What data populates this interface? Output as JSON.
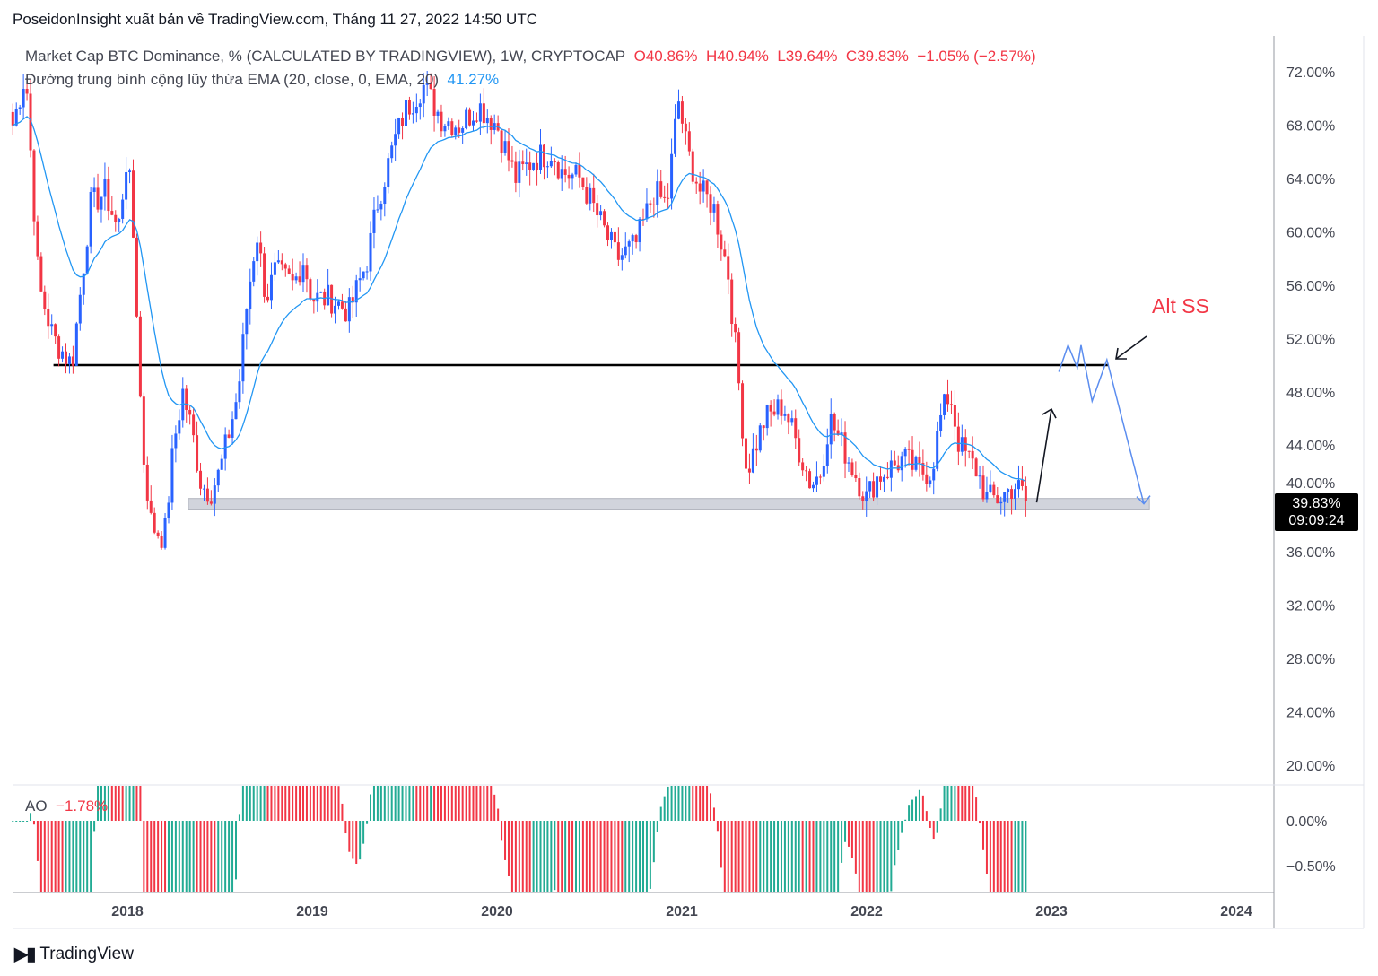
{
  "header": "PoseidonInsight xuất bản về TradingView.com, Tháng 11 27, 2022 14:50 UTC",
  "legend": {
    "symbol": "Market Cap BTC Dominance, % (CALCULATED BY TRADINGVIEW), 1W, CRYPTOCAP",
    "o": "O40.86%",
    "h": "H40.94%",
    "l": "L39.64%",
    "c": "C39.83%",
    "chg": "−1.05% (−2.57%)",
    "ema_label": "Đường trung bình cộng lũy thừa EMA (20, close, 0, EMA, 20)",
    "ema_value": "41.27%"
  },
  "price_tag": {
    "value": "39.83%",
    "countdown": "09:09:24"
  },
  "ao": {
    "label": "AO",
    "value": "−1.78%",
    "ticks": [
      "0.00%",
      "−0.50%"
    ]
  },
  "annotation": {
    "text": "Alt SS"
  },
  "footer": {
    "brand": "TradingView",
    "logo": "17"
  },
  "colors": {
    "up": "#2962ff",
    "down": "#f23645",
    "ema": "#2196f3",
    "ao_up": "#22ab94",
    "ao_down": "#f23645"
  },
  "chart_data": {
    "type": "candlestick",
    "title": "Market Cap BTC Dominance, % 1W",
    "ylim": [
      20,
      72
    ],
    "y_ticks": [
      "72.00%",
      "68.00%",
      "64.00%",
      "60.00%",
      "56.00%",
      "52.00%",
      "48.00%",
      "44.00%",
      "40.00%",
      "36.00%",
      "32.00%",
      "28.00%",
      "24.00%",
      "20.00%"
    ],
    "y_tick_values": [
      72,
      68,
      64,
      60,
      56,
      52,
      48,
      44,
      40,
      36,
      32,
      28,
      24,
      20
    ],
    "x_ticks": [
      "2018",
      "2019",
      "2020",
      "2021",
      "2022",
      "2023",
      "2024"
    ],
    "x_tick_values": [
      2018,
      2019,
      2020,
      2021,
      2022,
      2023,
      2024
    ],
    "close_path": [
      [
        2017.38,
        68
      ],
      [
        2017.45,
        72
      ],
      [
        2017.52,
        56
      ],
      [
        2017.6,
        52
      ],
      [
        2017.7,
        50
      ],
      [
        2017.8,
        62
      ],
      [
        2017.88,
        63
      ],
      [
        2017.95,
        60
      ],
      [
        2018.0,
        66
      ],
      [
        2018.04,
        58
      ],
      [
        2018.08,
        44
      ],
      [
        2018.13,
        38
      ],
      [
        2018.2,
        37
      ],
      [
        2018.25,
        44
      ],
      [
        2018.3,
        48
      ],
      [
        2018.35,
        45
      ],
      [
        2018.4,
        41
      ],
      [
        2018.45,
        40.5
      ],
      [
        2018.5,
        42
      ],
      [
        2018.55,
        45
      ],
      [
        2018.6,
        48
      ],
      [
        2018.65,
        55
      ],
      [
        2018.7,
        60
      ],
      [
        2018.75,
        55
      ],
      [
        2018.8,
        57
      ],
      [
        2018.9,
        56
      ],
      [
        2018.95,
        58
      ],
      [
        2019.0,
        55
      ],
      [
        2019.1,
        55
      ],
      [
        2019.2,
        54
      ],
      [
        2019.3,
        58
      ],
      [
        2019.35,
        62
      ],
      [
        2019.45,
        67
      ],
      [
        2019.5,
        69
      ],
      [
        2019.6,
        71
      ],
      [
        2019.7,
        68.5
      ],
      [
        2019.8,
        68
      ],
      [
        2019.9,
        69.5
      ],
      [
        2020.0,
        68
      ],
      [
        2020.1,
        64
      ],
      [
        2020.2,
        65.5
      ],
      [
        2020.3,
        66
      ],
      [
        2020.35,
        64.5
      ],
      [
        2020.45,
        64
      ],
      [
        2020.55,
        61
      ],
      [
        2020.65,
        58
      ],
      [
        2020.75,
        59
      ],
      [
        2020.85,
        63
      ],
      [
        2020.92,
        62
      ],
      [
        2020.98,
        70
      ],
      [
        2021.03,
        66
      ],
      [
        2021.1,
        63
      ],
      [
        2021.17,
        62
      ],
      [
        2021.25,
        57
      ],
      [
        2021.3,
        50
      ],
      [
        2021.35,
        42
      ],
      [
        2021.4,
        44
      ],
      [
        2021.45,
        46
      ],
      [
        2021.55,
        47
      ],
      [
        2021.6,
        45
      ],
      [
        2021.7,
        41
      ],
      [
        2021.75,
        42
      ],
      [
        2021.8,
        46
      ],
      [
        2021.9,
        43
      ],
      [
        2022.0,
        40
      ],
      [
        2022.05,
        41.5
      ],
      [
        2022.1,
        42
      ],
      [
        2022.2,
        43
      ],
      [
        2022.28,
        42
      ],
      [
        2022.35,
        42
      ],
      [
        2022.4,
        46
      ],
      [
        2022.45,
        48
      ],
      [
        2022.5,
        44
      ],
      [
        2022.6,
        42
      ],
      [
        2022.65,
        40
      ],
      [
        2022.72,
        40
      ],
      [
        2022.8,
        41
      ],
      [
        2022.88,
        39.83
      ]
    ],
    "ema_period": 20,
    "resistance_line": {
      "value": 50,
      "from": 2017.6,
      "to": 2023.31
    },
    "support_zone": {
      "low": 39.2,
      "high": 40,
      "from": 2018.33,
      "to": 2023.53
    },
    "projection": [
      [
        2023.04,
        49.5
      ],
      [
        2023.09,
        51.5
      ],
      [
        2023.14,
        49.8
      ],
      [
        2023.16,
        51.5
      ],
      [
        2023.22,
        47.3
      ],
      [
        2023.3,
        50.4
      ],
      [
        2023.5,
        39.6
      ]
    ],
    "up_arrow": [
      [
        2022.92,
        39.7
      ],
      [
        2023.0,
        46.7
      ]
    ]
  }
}
